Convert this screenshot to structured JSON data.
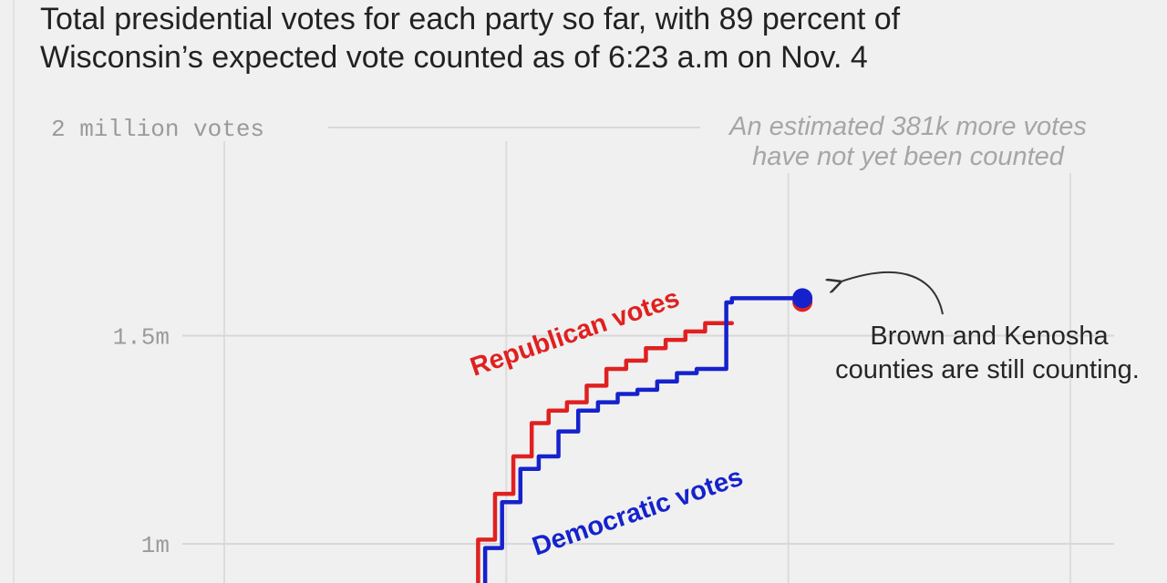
{
  "chart_data": {
    "type": "line",
    "subtitle_lines": [
      "Total presidential votes for each party so far, with 89 percent of",
      "Wisconsin’s expected vote counted as of 6:23 a.m on Nov. 4"
    ],
    "ylim": [
      0.88,
      2.0
    ],
    "y_ticks": [
      {
        "value": 2.0,
        "label": "2 million votes"
      },
      {
        "value": 1.5,
        "label": "1.5m"
      },
      {
        "value": 1.0,
        "label": "1m"
      }
    ],
    "x_gridlines": [
      0,
      1,
      2,
      3
    ],
    "xlim": [
      -0.3,
      3.3
    ],
    "series": [
      {
        "name": "Republican votes",
        "color": "#e02020",
        "x": [
          0.87,
          0.93,
          0.99,
          1.06,
          1.12,
          1.18,
          1.25,
          1.32,
          1.39,
          1.46,
          1.53,
          1.6,
          1.67,
          1.74,
          1.8
        ],
        "values": [
          0.87,
          1.01,
          1.12,
          1.21,
          1.29,
          1.32,
          1.34,
          1.38,
          1.42,
          1.44,
          1.47,
          1.49,
          1.51,
          1.53,
          1.53
        ]
      },
      {
        "name": "Democratic votes",
        "color": "#1522cc",
        "x": [
          0.9,
          0.95,
          1.02,
          1.08,
          1.15,
          1.22,
          1.29,
          1.36,
          1.43,
          1.5,
          1.57,
          1.64,
          1.71,
          1.78,
          1.78,
          1.82,
          1.9,
          1.96,
          2.03,
          2.05
        ],
        "values": [
          0.87,
          0.99,
          1.1,
          1.18,
          1.21,
          1.27,
          1.32,
          1.34,
          1.36,
          1.37,
          1.39,
          1.41,
          1.42,
          1.42,
          1.58,
          1.59,
          1.59,
          1.59,
          1.59,
          1.59
        ]
      }
    ],
    "endpoint": {
      "x": 2.05,
      "value": 1.59,
      "color": "#1522cc",
      "under_color": "#e02020"
    },
    "annotations": {
      "uncounted_lines": [
        "An estimated 381k more votes",
        "have not yet been counted"
      ],
      "counties_lines": [
        "Brown and Kenosha",
        "counties are still counting."
      ]
    }
  }
}
